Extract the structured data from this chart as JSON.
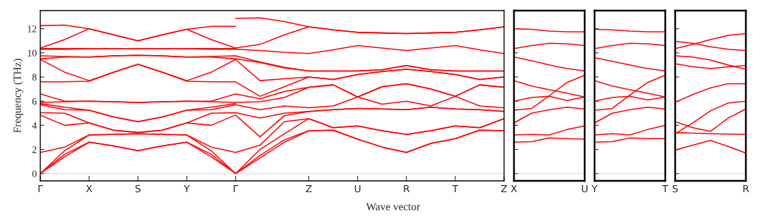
{
  "chart_data": [
    {
      "type": "line",
      "ylabel": "Frequency (THz)",
      "xlabel": "Wave vector",
      "ylim": [
        -0.6,
        13.5
      ],
      "categories": [
        "Γ",
        null,
        "X",
        null,
        "S",
        null,
        "Y",
        null,
        "Γ",
        null,
        null,
        "Z",
        null,
        "U",
        null,
        "R",
        null,
        "T",
        null,
        "Z"
      ],
      "yticks": [
        0,
        2,
        4,
        6,
        8,
        10,
        12
      ],
      "ref_lines": [
        {
          "axis": "y",
          "value": 0,
          "color": "#7070ff",
          "line_style": "dotted"
        }
      ],
      "series": [
        {
          "color": "#ff0000",
          "values": [
            0,
            1.4,
            2.6,
            2.3,
            1.9,
            2.3,
            2.6,
            1.4,
            0,
            1.3,
            2.6,
            3.55,
            3.6,
            2.85,
            2.2,
            1.75,
            2.5,
            2.9,
            3.6,
            3.55
          ]
        },
        {
          "color": "#ff0000",
          "values": [
            0,
            1.6,
            2.6,
            2.3,
            1.9,
            2.3,
            2.6,
            1.6,
            0,
            1.5,
            2.8,
            3.55,
            3.6,
            2.85,
            2.2,
            1.75,
            2.5,
            2.9,
            3.6,
            3.55
          ]
        },
        {
          "color": "#ff0000",
          "values": [
            0,
            1.9,
            3.2,
            3.25,
            3.3,
            3.25,
            3.2,
            1.9,
            0,
            2.0,
            3.3,
            4.55,
            3.8,
            3.95,
            3.55,
            3.25,
            3.55,
            3.95,
            3.8,
            4.55
          ]
        },
        {
          "color": "#ff0000",
          "values": [
            1.75,
            2.2,
            3.2,
            3.25,
            3.3,
            3.25,
            3.2,
            2.2,
            1.75,
            2.35,
            4.3,
            4.55,
            3.8,
            3.95,
            3.55,
            3.25,
            3.55,
            3.95,
            3.8,
            4.55
          ]
        },
        {
          "color": "#ff0000",
          "values": [
            4.85,
            4.0,
            4.2,
            3.6,
            3.4,
            3.6,
            4.2,
            4.0,
            4.85,
            3.05,
            4.8,
            5.15,
            5.3,
            5.4,
            5.35,
            5.3,
            5.5,
            5.35,
            5.3,
            5.15
          ]
        },
        {
          "color": "#ff0000",
          "values": [
            5.05,
            5.0,
            4.2,
            3.6,
            3.4,
            3.6,
            4.2,
            5.0,
            5.05,
            4.6,
            5.0,
            5.15,
            5.3,
            5.4,
            5.35,
            5.3,
            5.5,
            5.35,
            5.3,
            5.15
          ]
        },
        {
          "color": "#ff0000",
          "values": [
            5.7,
            5.3,
            5.25,
            4.7,
            4.3,
            4.7,
            5.25,
            5.3,
            5.7,
            5.3,
            5.6,
            5.45,
            5.6,
            6.35,
            5.75,
            6.0,
            5.6,
            6.4,
            5.6,
            5.45
          ]
        },
        {
          "color": "#ff0000",
          "values": [
            5.8,
            5.5,
            5.25,
            4.7,
            4.3,
            4.7,
            5.25,
            5.5,
            5.8,
            null,
            null,
            null,
            null,
            null,
            null,
            null,
            null,
            null,
            null,
            null
          ]
        },
        {
          "color": "#ff0000",
          "values": [
            5.9,
            5.95,
            6.0,
            5.95,
            5.9,
            5.95,
            6.0,
            5.95,
            5.9,
            5.95,
            6.3,
            7.15,
            7.35,
            6.35,
            7.2,
            7.45,
            7.0,
            6.4,
            7.35,
            7.15
          ]
        },
        {
          "color": "#ff0000",
          "values": [
            6.6,
            6.0,
            6.0,
            5.95,
            5.9,
            5.95,
            6.0,
            6.0,
            6.6,
            6.2,
            6.8,
            7.15,
            7.35,
            6.35,
            7.2,
            7.45,
            7.0,
            6.4,
            7.35,
            7.15
          ]
        },
        {
          "color": "#ff0000",
          "values": [
            7.6,
            7.6,
            7.65,
            8.4,
            9.05,
            8.4,
            7.65,
            7.6,
            7.6,
            6.4,
            7.2,
            8.0,
            7.8,
            8.2,
            8.45,
            8.65,
            8.45,
            8.2,
            7.8,
            8.0
          ]
        },
        {
          "color": "#ff0000",
          "values": [
            9.45,
            8.4,
            7.7,
            8.4,
            9.05,
            8.4,
            7.7,
            8.4,
            9.45,
            7.7,
            7.85,
            8.0,
            7.8,
            8.2,
            8.45,
            8.65,
            8.45,
            8.2,
            7.8,
            8.0
          ]
        },
        {
          "color": "#ff0000",
          "values": [
            9.5,
            9.65,
            9.65,
            9.75,
            9.8,
            9.75,
            9.65,
            9.65,
            9.5,
            9.2,
            8.75,
            8.5,
            8.5,
            8.5,
            8.6,
            8.95,
            8.6,
            8.5,
            8.5,
            8.5
          ]
        },
        {
          "color": "#ff0000",
          "values": [
            9.75,
            9.7,
            9.65,
            9.75,
            9.8,
            9.75,
            9.65,
            9.7,
            9.75,
            9.25,
            8.8,
            8.5,
            8.5,
            8.5,
            8.6,
            8.95,
            8.6,
            8.5,
            8.5,
            8.5
          ]
        },
        {
          "color": "#ff0000",
          "values": [
            10.3,
            10.3,
            10.35,
            10.35,
            10.35,
            10.35,
            10.35,
            10.3,
            10.3,
            10.2,
            10.05,
            9.95,
            10.25,
            10.6,
            10.4,
            10.2,
            10.4,
            10.6,
            10.25,
            9.95
          ]
        },
        {
          "color": "#ff0000",
          "values": [
            10.35,
            10.35,
            10.35,
            10.35,
            10.35,
            10.35,
            10.35,
            10.35,
            10.35,
            null,
            null,
            null,
            null,
            null,
            null,
            null,
            null,
            null,
            null,
            null
          ]
        },
        {
          "color": "#ff0000",
          "values": [
            10.4,
            11.1,
            12.0,
            11.5,
            11.0,
            11.5,
            11.95,
            11.1,
            10.4,
            10.7,
            11.5,
            12.15,
            11.9,
            11.7,
            11.65,
            11.6,
            11.65,
            11.7,
            11.9,
            12.15
          ]
        },
        {
          "color": "#ff0000",
          "values": [
            12.25,
            12.3,
            12.0,
            11.5,
            11.0,
            11.5,
            11.95,
            12.2,
            12.2,
            null,
            null,
            null,
            null,
            null,
            null,
            null,
            null,
            null,
            null,
            null
          ]
        },
        {
          "color": "#ff0000",
          "values": [
            null,
            null,
            null,
            null,
            null,
            null,
            null,
            null,
            12.85,
            12.9,
            12.6,
            12.15,
            11.9,
            11.7,
            11.65,
            11.6,
            11.65,
            11.7,
            11.9,
            12.15
          ]
        }
      ]
    },
    {
      "type": "line",
      "ylim": [
        -0.6,
        13.5
      ],
      "categories": [
        "X",
        null,
        null,
        null,
        "U"
      ],
      "yticks": [
        {
          "value": 0,
          "label": null
        },
        {
          "value": 2,
          "label": null
        },
        {
          "value": 4,
          "label": null
        },
        {
          "value": 6,
          "label": null
        },
        {
          "value": 8,
          "label": null
        },
        {
          "value": 10,
          "label": null
        },
        {
          "value": 12,
          "label": null
        }
      ],
      "tick_labels": "x",
      "ref_lines": [
        {
          "axis": "y",
          "value": 0,
          "color": "#7070ff",
          "line_style": "dotted"
        }
      ],
      "series": [
        {
          "color": "#ff0000",
          "values": [
            12.0,
            11.95,
            11.8,
            11.75,
            11.75
          ]
        },
        {
          "color": "#ff0000",
          "values": [
            10.35,
            10.6,
            10.8,
            10.75,
            10.6
          ]
        },
        {
          "color": "#ff0000",
          "values": [
            9.65,
            9.35,
            9.0,
            8.7,
            8.5
          ]
        },
        {
          "color": "#ff0000",
          "values": [
            5.25,
            5.4,
            6.45,
            7.55,
            8.15
          ]
        },
        {
          "color": "#ff0000",
          "values": [
            7.7,
            7.25,
            6.95,
            6.65,
            6.35
          ]
        },
        {
          "color": "#ff0000",
          "values": [
            6.0,
            6.3,
            6.4,
            6.05,
            6.35
          ]
        },
        {
          "color": "#ff0000",
          "values": [
            4.2,
            5.0,
            5.3,
            5.5,
            5.35
          ]
        },
        {
          "color": "#ff0000",
          "values": [
            3.2,
            3.25,
            3.2,
            3.65,
            3.95
          ]
        },
        {
          "color": "#ff0000",
          "values": [
            2.6,
            2.65,
            2.95,
            2.9,
            2.85
          ]
        }
      ]
    },
    {
      "type": "line",
      "ylim": [
        -0.6,
        13.5
      ],
      "categories": [
        "Y",
        null,
        null,
        null,
        "T"
      ],
      "yticks": [
        {
          "value": 0,
          "label": null
        },
        {
          "value": 2,
          "label": null
        },
        {
          "value": 4,
          "label": null
        },
        {
          "value": 6,
          "label": null
        },
        {
          "value": 8,
          "label": null
        },
        {
          "value": 10,
          "label": null
        },
        {
          "value": 12,
          "label": null
        }
      ],
      "tick_labels": "x",
      "ref_lines": [
        {
          "axis": "y",
          "value": 0,
          "color": "#7070ff",
          "line_style": "dotted"
        }
      ],
      "series": [
        {
          "color": "#ff0000",
          "values": [
            11.95,
            11.9,
            11.8,
            11.75,
            11.75
          ]
        },
        {
          "color": "#ff0000",
          "values": [
            10.35,
            10.6,
            10.8,
            10.75,
            10.6
          ]
        },
        {
          "color": "#ff0000",
          "values": [
            9.6,
            9.3,
            9.0,
            8.7,
            8.5
          ]
        },
        {
          "color": "#ff0000",
          "values": [
            5.25,
            5.4,
            6.5,
            7.55,
            8.15
          ]
        },
        {
          "color": "#ff0000",
          "values": [
            7.7,
            7.25,
            6.95,
            6.65,
            6.35
          ]
        },
        {
          "color": "#ff0000",
          "values": [
            6.0,
            6.3,
            6.4,
            6.1,
            6.35
          ]
        },
        {
          "color": "#ff0000",
          "values": [
            4.2,
            5.0,
            5.3,
            5.5,
            5.35
          ]
        },
        {
          "color": "#ff0000",
          "values": [
            3.2,
            3.3,
            3.2,
            3.65,
            4.0
          ]
        },
        {
          "color": "#ff0000",
          "values": [
            2.6,
            2.65,
            2.95,
            2.9,
            2.9
          ]
        }
      ]
    },
    {
      "type": "line",
      "ylim": [
        -0.6,
        13.5
      ],
      "categories": [
        "S",
        null,
        null,
        null,
        "R"
      ],
      "yticks": [
        {
          "value": 0,
          "label": null
        },
        {
          "value": 2,
          "label": null
        },
        {
          "value": 4,
          "label": null
        },
        {
          "value": 6,
          "label": null
        },
        {
          "value": 8,
          "label": null
        },
        {
          "value": 10,
          "label": null
        },
        {
          "value": 12,
          "label": null
        }
      ],
      "tick_labels": "x",
      "ref_lines": [
        {
          "axis": "y",
          "value": 0,
          "color": "#7070ff",
          "line_style": "dotted"
        }
      ],
      "series": [
        {
          "color": "#ff0000",
          "values": [
            10.95,
            10.8,
            10.5,
            10.3,
            10.2
          ]
        },
        {
          "color": "#ff0000",
          "values": [
            10.35,
            10.7,
            11.1,
            11.45,
            11.6
          ]
        },
        {
          "color": "#ff0000",
          "values": [
            9.75,
            9.65,
            9.4,
            9.0,
            8.65
          ]
        },
        {
          "color": "#ff0000",
          "values": [
            9.1,
            8.85,
            8.7,
            8.85,
            8.95
          ]
        },
        {
          "color": "#ff0000",
          "values": [
            5.9,
            6.55,
            7.1,
            7.45,
            7.45
          ]
        },
        {
          "color": "#ff0000",
          "values": [
            3.3,
            4.2,
            5.2,
            5.85,
            6.0
          ]
        },
        {
          "color": "#ff0000",
          "values": [
            4.3,
            3.8,
            3.5,
            4.6,
            5.35
          ]
        },
        {
          "color": "#ff0000",
          "values": [
            3.4,
            3.35,
            3.3,
            3.28,
            3.25
          ]
        },
        {
          "color": "#ff0000",
          "values": [
            1.95,
            2.35,
            2.75,
            2.25,
            1.7
          ]
        }
      ]
    }
  ]
}
